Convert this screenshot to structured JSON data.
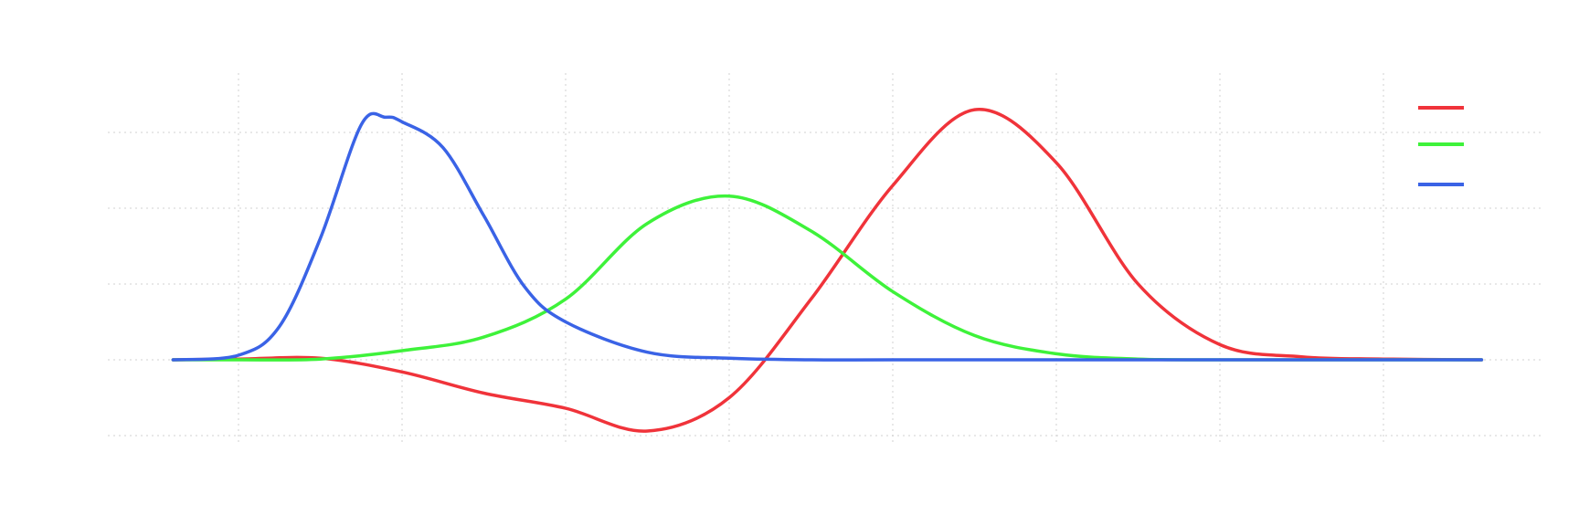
{
  "chart_data": {
    "type": "line",
    "title": "",
    "xlabel": "",
    "ylabel": "",
    "xlim": [
      -1.4,
      7.4
    ],
    "ylim": [
      -0.5,
      1.9
    ],
    "x_grid": [
      0,
      1,
      2,
      3,
      4,
      5,
      6,
      7
    ],
    "y_grid": [
      -0.5,
      0,
      0.5,
      1,
      1.5
    ],
    "grid": true,
    "legend_position": "top-right",
    "series": [
      {
        "color": "#f0333a",
        "x": [
          -0.4,
          0,
          0.5,
          1,
          1.5,
          2,
          2.5,
          3,
          3.5,
          4,
          4.5,
          5,
          5.5,
          6,
          6.5,
          7,
          7.6
        ],
        "y": [
          0,
          0.005,
          0.01,
          -0.08,
          -0.22,
          -0.32,
          -0.47,
          -0.25,
          0.4,
          1.15,
          1.65,
          1.3,
          0.5,
          0.1,
          0.02,
          0.005,
          0.0
        ]
      },
      {
        "color": "#3ef23a",
        "x": [
          -0.4,
          0,
          0.5,
          1,
          1.5,
          2,
          2.5,
          3,
          3.5,
          4,
          4.5,
          5,
          5.5,
          6,
          6.5,
          7,
          7.6
        ],
        "y": [
          0,
          0,
          0.005,
          0.06,
          0.15,
          0.4,
          0.9,
          1.08,
          0.85,
          0.45,
          0.16,
          0.04,
          0.005,
          0,
          0,
          0,
          0
        ]
      },
      {
        "color": "#3a63e6",
        "x": [
          -0.4,
          0,
          0.25,
          0.5,
          0.75,
          0.9,
          1.0,
          1.25,
          1.5,
          1.75,
          2,
          2.5,
          3,
          3.5,
          4,
          5,
          6,
          7,
          7.6
        ],
        "y": [
          0,
          0.03,
          0.22,
          0.8,
          1.55,
          1.6,
          1.57,
          1.4,
          0.95,
          0.48,
          0.25,
          0.05,
          0.01,
          0,
          0,
          0,
          0,
          0,
          0
        ]
      }
    ]
  }
}
